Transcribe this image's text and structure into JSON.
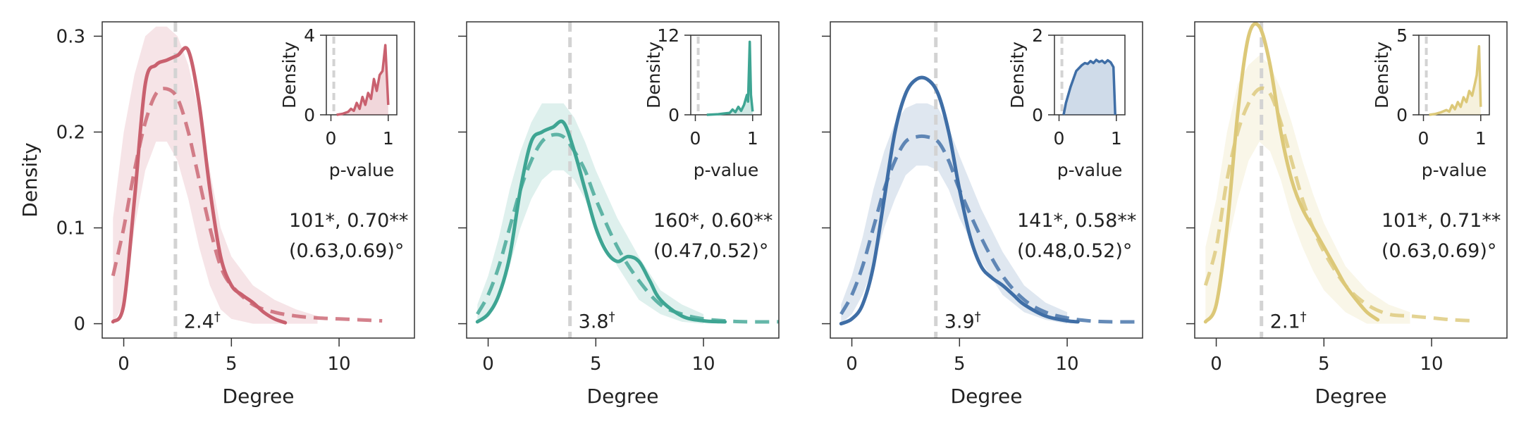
{
  "chart_data": [
    {
      "type": "line",
      "color": "#c9616f",
      "xlabel": "Degree",
      "ylabel": "Density",
      "xlim": [
        -1,
        13.5
      ],
      "ylim": [
        -0.015,
        0.315
      ],
      "xticks": [
        0,
        5,
        10
      ],
      "yticks": [
        0,
        0.1,
        0.2,
        0.3
      ],
      "ytick_labels": [
        "0",
        "0.1",
        "0.2",
        "0.3"
      ],
      "show_ytick_labels": true,
      "vline": 2.4,
      "vline_label": "2.4",
      "vline_label_sup": "†",
      "annotation_line1": "101*, 0.70**",
      "annotation_line2": "(0.63,0.69)°",
      "series": [
        {
          "style": "solid",
          "x": [
            -0.5,
            0,
            0.5,
            1,
            1.5,
            2,
            2.5,
            3,
            3.5,
            4,
            4.5,
            5,
            5.5,
            6,
            6.5,
            7,
            7.5
          ],
          "y": [
            0.002,
            0.02,
            0.13,
            0.25,
            0.27,
            0.275,
            0.28,
            0.285,
            0.23,
            0.14,
            0.07,
            0.04,
            0.03,
            0.022,
            0.012,
            0.005,
            0.001
          ]
        },
        {
          "style": "dashed",
          "x": [
            -0.5,
            0,
            0.5,
            1,
            1.5,
            2,
            2.5,
            3,
            3.5,
            4,
            4.5,
            5,
            6,
            7,
            8,
            9,
            10,
            11,
            12
          ],
          "y": [
            0.05,
            0.1,
            0.16,
            0.21,
            0.24,
            0.245,
            0.235,
            0.2,
            0.15,
            0.1,
            0.06,
            0.04,
            0.02,
            0.012,
            0.008,
            0.006,
            0.005,
            0.004,
            0.003
          ]
        }
      ],
      "band": {
        "x": [
          -0.5,
          0,
          0.5,
          1,
          1.5,
          2,
          2.5,
          3,
          3.5,
          4,
          4.5,
          5,
          6,
          7,
          8,
          9
        ],
        "lower": [
          0.0,
          0.02,
          0.1,
          0.16,
          0.19,
          0.19,
          0.17,
          0.13,
          0.08,
          0.04,
          0.015,
          0.005,
          0.0,
          0.0,
          0.0,
          0.0
        ],
        "upper": [
          0.11,
          0.2,
          0.26,
          0.3,
          0.31,
          0.31,
          0.3,
          0.27,
          0.22,
          0.16,
          0.1,
          0.07,
          0.04,
          0.025,
          0.015,
          0.008
        ]
      },
      "inset": {
        "xlabel": "p-value",
        "xlim": [
          -0.08,
          1.15
        ],
        "ylim": [
          0,
          4
        ],
        "yticks": [
          0,
          4
        ],
        "xticks": [
          0,
          1
        ],
        "vline": 0.05,
        "x": [
          0.1,
          0.2,
          0.3,
          0.35,
          0.4,
          0.45,
          0.5,
          0.55,
          0.6,
          0.65,
          0.7,
          0.75,
          0.8,
          0.85,
          0.9,
          0.95,
          1.0
        ],
        "y": [
          0.0,
          0.05,
          0.15,
          0.3,
          0.2,
          0.6,
          0.3,
          0.9,
          0.5,
          1.1,
          0.8,
          1.8,
          1.2,
          2.0,
          2.2,
          3.5,
          0.5
        ]
      }
    },
    {
      "type": "line",
      "color": "#3ea593",
      "xlabel": "Degree",
      "ylabel": "",
      "xlim": [
        -1,
        13.5
      ],
      "ylim": [
        -0.015,
        0.315
      ],
      "xticks": [
        0,
        5,
        10
      ],
      "yticks": [
        0,
        0.1,
        0.2,
        0.3
      ],
      "ytick_labels": [
        "0",
        "0.1",
        "0.2",
        "0.3"
      ],
      "show_ytick_labels": false,
      "vline": 3.8,
      "vline_label": "3.8",
      "vline_label_sup": "†",
      "annotation_line1": "160*, 0.60**",
      "annotation_line2": "(0.47,0.52)°",
      "series": [
        {
          "style": "solid",
          "x": [
            -0.5,
            0,
            0.5,
            1,
            1.5,
            2,
            2.5,
            3,
            3.5,
            4,
            4.5,
            5,
            5.5,
            6,
            6.5,
            7,
            7.5,
            8,
            9,
            10,
            11
          ],
          "y": [
            0.002,
            0.01,
            0.03,
            0.07,
            0.14,
            0.19,
            0.2,
            0.205,
            0.21,
            0.18,
            0.14,
            0.1,
            0.075,
            0.065,
            0.07,
            0.065,
            0.045,
            0.025,
            0.008,
            0.003,
            0.002
          ]
        },
        {
          "style": "dashed",
          "x": [
            -0.5,
            0,
            0.5,
            1,
            1.5,
            2,
            2.5,
            3,
            3.5,
            4,
            4.5,
            5,
            6,
            7,
            8,
            9,
            10,
            11,
            12,
            13.5
          ],
          "y": [
            0.01,
            0.03,
            0.06,
            0.1,
            0.14,
            0.17,
            0.19,
            0.197,
            0.195,
            0.18,
            0.16,
            0.13,
            0.08,
            0.045,
            0.02,
            0.01,
            0.005,
            0.003,
            0.002,
            0.002
          ]
        }
      ],
      "band": {
        "x": [
          -0.5,
          0,
          0.5,
          1,
          1.5,
          2,
          2.5,
          3,
          3.5,
          4,
          4.5,
          5,
          6,
          7,
          8,
          9,
          10
        ],
        "lower": [
          0.0,
          0.01,
          0.03,
          0.06,
          0.1,
          0.13,
          0.15,
          0.16,
          0.16,
          0.15,
          0.13,
          0.1,
          0.06,
          0.025,
          0.01,
          0.002,
          0.0
        ],
        "upper": [
          0.02,
          0.05,
          0.09,
          0.14,
          0.18,
          0.21,
          0.23,
          0.23,
          0.23,
          0.215,
          0.19,
          0.16,
          0.11,
          0.07,
          0.035,
          0.02,
          0.01
        ]
      },
      "inset": {
        "xlabel": "p-value",
        "xlim": [
          -0.08,
          1.15
        ],
        "ylim": [
          0,
          12
        ],
        "yticks": [
          0,
          12
        ],
        "xticks": [
          0,
          1
        ],
        "vline": 0.05,
        "x": [
          0.2,
          0.4,
          0.5,
          0.6,
          0.65,
          0.7,
          0.75,
          0.8,
          0.85,
          0.9,
          0.92,
          0.95,
          0.97,
          1.0
        ],
        "y": [
          0.0,
          0.1,
          0.2,
          0.3,
          0.8,
          0.4,
          1.2,
          0.6,
          1.5,
          3.0,
          2.0,
          11.0,
          3.0,
          0.5
        ]
      }
    },
    {
      "type": "line",
      "color": "#3f6ea6",
      "xlabel": "Degree",
      "ylabel": "",
      "xlim": [
        -1,
        13.5
      ],
      "ylim": [
        -0.015,
        0.315
      ],
      "xticks": [
        0,
        5,
        10
      ],
      "yticks": [
        0,
        0.1,
        0.2,
        0.3
      ],
      "ytick_labels": [
        "0",
        "0.1",
        "0.2",
        "0.3"
      ],
      "show_ytick_labels": false,
      "vline": 3.9,
      "vline_label": "3.9",
      "vline_label_sup": "†",
      "annotation_line1": "141*, 0.58**",
      "annotation_line2": "(0.48,0.52)°",
      "series": [
        {
          "style": "solid",
          "x": [
            -0.5,
            0,
            0.5,
            1,
            1.5,
            2,
            2.5,
            3,
            3.5,
            4,
            4.5,
            5,
            5.5,
            6,
            6.5,
            7,
            7.5,
            8,
            9,
            10,
            10.5
          ],
          "y": [
            0.0,
            0.005,
            0.02,
            0.06,
            0.13,
            0.2,
            0.24,
            0.255,
            0.255,
            0.24,
            0.2,
            0.14,
            0.09,
            0.06,
            0.048,
            0.04,
            0.03,
            0.02,
            0.008,
            0.003,
            0.002
          ]
        },
        {
          "style": "dashed",
          "x": [
            -0.5,
            0,
            0.5,
            1,
            1.5,
            2,
            2.5,
            3,
            3.5,
            4,
            4.5,
            5,
            6,
            7,
            8,
            9,
            10,
            11,
            12,
            13.5
          ],
          "y": [
            0.01,
            0.03,
            0.06,
            0.1,
            0.14,
            0.17,
            0.19,
            0.195,
            0.195,
            0.19,
            0.17,
            0.14,
            0.09,
            0.05,
            0.025,
            0.012,
            0.006,
            0.003,
            0.002,
            0.002
          ]
        }
      ],
      "band": {
        "x": [
          -0.5,
          0,
          0.5,
          1,
          1.5,
          2,
          2.5,
          3,
          3.5,
          4,
          4.5,
          5,
          6,
          7,
          8,
          9,
          10
        ],
        "lower": [
          0.0,
          0.01,
          0.03,
          0.06,
          0.1,
          0.13,
          0.155,
          0.165,
          0.165,
          0.16,
          0.14,
          0.11,
          0.065,
          0.03,
          0.012,
          0.004,
          0.0
        ],
        "upper": [
          0.02,
          0.05,
          0.09,
          0.14,
          0.18,
          0.21,
          0.225,
          0.23,
          0.23,
          0.225,
          0.205,
          0.175,
          0.12,
          0.075,
          0.04,
          0.022,
          0.012
        ]
      },
      "inset": {
        "xlabel": "p-value",
        "xlim": [
          -0.08,
          1.15
        ],
        "ylim": [
          0,
          2
        ],
        "yticks": [
          0,
          2
        ],
        "xticks": [
          0,
          1
        ],
        "vline": 0.05,
        "x": [
          0.08,
          0.12,
          0.2,
          0.3,
          0.4,
          0.45,
          0.5,
          0.55,
          0.6,
          0.65,
          0.7,
          0.75,
          0.8,
          0.85,
          0.9,
          0.95,
          0.98
        ],
        "y": [
          0.0,
          0.3,
          0.7,
          1.1,
          1.25,
          1.3,
          1.28,
          1.35,
          1.3,
          1.38,
          1.33,
          1.36,
          1.3,
          1.37,
          1.32,
          1.2,
          0.0
        ]
      }
    },
    {
      "type": "line",
      "color": "#dcc878",
      "xlabel": "Degree",
      "ylabel": "",
      "xlim": [
        -1,
        13.5
      ],
      "ylim": [
        -0.015,
        0.315
      ],
      "xticks": [
        0,
        5,
        10
      ],
      "yticks": [
        0,
        0.1,
        0.2,
        0.3
      ],
      "ytick_labels": [
        "0",
        "0.1",
        "0.2",
        "0.3"
      ],
      "show_ytick_labels": false,
      "vline": 2.1,
      "vline_label": "2.1",
      "vline_label_sup": "†",
      "annotation_line1": "101*, 0.71**",
      "annotation_line2": "(0.63,0.69)°",
      "series": [
        {
          "style": "solid",
          "x": [
            -0.5,
            0,
            0.5,
            1,
            1.5,
            2,
            2.5,
            3,
            3.5,
            4,
            4.5,
            5,
            5.5,
            6,
            6.5,
            7,
            7.5
          ],
          "y": [
            0.002,
            0.02,
            0.1,
            0.22,
            0.3,
            0.31,
            0.27,
            0.2,
            0.15,
            0.12,
            0.1,
            0.08,
            0.06,
            0.04,
            0.025,
            0.012,
            0.004
          ]
        },
        {
          "style": "dashed",
          "x": [
            -0.5,
            0,
            0.5,
            1,
            1.5,
            2,
            2.5,
            3,
            3.5,
            4,
            4.5,
            5,
            6,
            7,
            8,
            9,
            10,
            11,
            12
          ],
          "y": [
            0.04,
            0.08,
            0.15,
            0.2,
            0.23,
            0.245,
            0.24,
            0.21,
            0.17,
            0.13,
            0.1,
            0.075,
            0.04,
            0.02,
            0.01,
            0.008,
            0.006,
            0.004,
            0.003
          ]
        }
      ],
      "band": {
        "x": [
          -0.5,
          0,
          0.5,
          1,
          1.5,
          2,
          2.5,
          3,
          3.5,
          4,
          4.5,
          5,
          6,
          7,
          8,
          9
        ],
        "lower": [
          0.0,
          0.02,
          0.08,
          0.13,
          0.17,
          0.19,
          0.18,
          0.15,
          0.11,
          0.08,
          0.055,
          0.035,
          0.012,
          0.0,
          0.0,
          0.0
        ],
        "upper": [
          0.08,
          0.13,
          0.2,
          0.25,
          0.27,
          0.28,
          0.27,
          0.245,
          0.21,
          0.17,
          0.135,
          0.105,
          0.06,
          0.035,
          0.02,
          0.012
        ]
      },
      "inset": {
        "xlabel": "p-value",
        "xlim": [
          -0.08,
          1.15
        ],
        "ylim": [
          0,
          5
        ],
        "yticks": [
          0,
          5
        ],
        "xticks": [
          0,
          1
        ],
        "vline": 0.05,
        "x": [
          0.1,
          0.2,
          0.3,
          0.4,
          0.45,
          0.5,
          0.55,
          0.6,
          0.65,
          0.7,
          0.75,
          0.8,
          0.85,
          0.9,
          0.93,
          0.97,
          1.0
        ],
        "y": [
          0.0,
          0.05,
          0.15,
          0.3,
          0.2,
          0.6,
          0.35,
          0.8,
          0.5,
          1.1,
          0.8,
          1.5,
          1.2,
          2.0,
          2.5,
          4.3,
          0.5
        ]
      }
    }
  ]
}
